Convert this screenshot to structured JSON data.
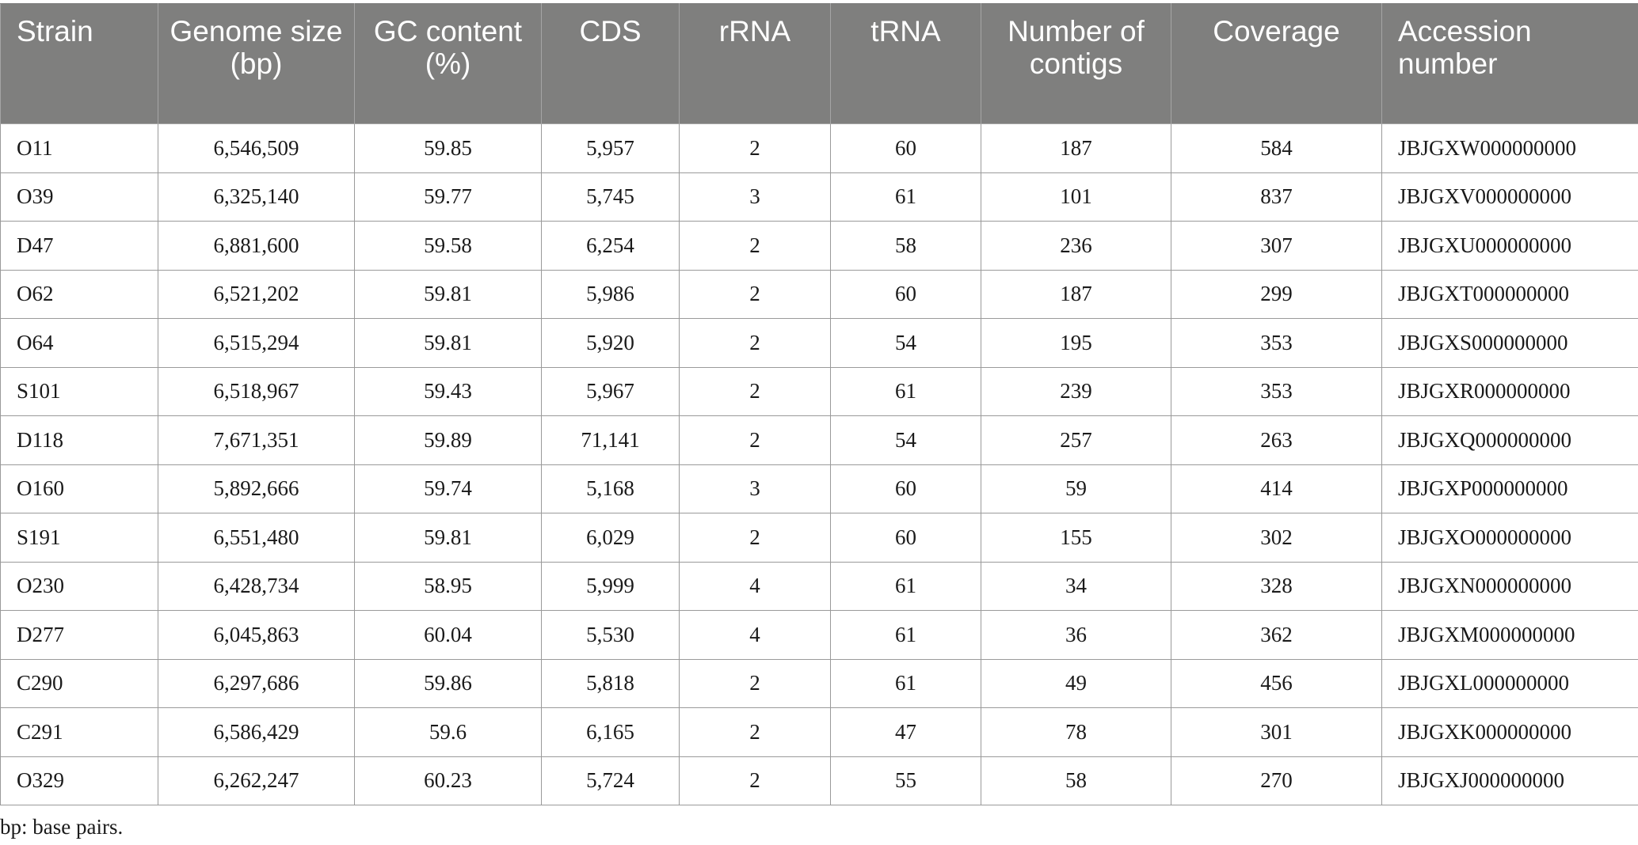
{
  "table": {
    "headers": [
      "Strain",
      "Genome size (bp)",
      "GC content (%)",
      "CDS",
      "rRNA",
      "tRNA",
      "Number of contigs",
      "Coverage",
      "Accession number"
    ],
    "rows": [
      [
        "O11",
        "6,546,509",
        "59.85",
        "5,957",
        "2",
        "60",
        "187",
        "584",
        "JBJGXW000000000"
      ],
      [
        "O39",
        "6,325,140",
        "59.77",
        "5,745",
        "3",
        "61",
        "101",
        "837",
        "JBJGXV000000000"
      ],
      [
        "D47",
        "6,881,600",
        "59.58",
        "6,254",
        "2",
        "58",
        "236",
        "307",
        "JBJGXU000000000"
      ],
      [
        "O62",
        "6,521,202",
        "59.81",
        "5,986",
        "2",
        "60",
        "187",
        "299",
        "JBJGXT000000000"
      ],
      [
        "O64",
        "6,515,294",
        "59.81",
        "5,920",
        "2",
        "54",
        "195",
        "353",
        "JBJGXS000000000"
      ],
      [
        "S101",
        "6,518,967",
        "59.43",
        "5,967",
        "2",
        "61",
        "239",
        "353",
        "JBJGXR000000000"
      ],
      [
        "D118",
        "7,671,351",
        "59.89",
        "71,141",
        "2",
        "54",
        "257",
        "263",
        "JBJGXQ000000000"
      ],
      [
        "O160",
        "5,892,666",
        "59.74",
        "5,168",
        "3",
        "60",
        "59",
        "414",
        "JBJGXP000000000"
      ],
      [
        "S191",
        "6,551,480",
        "59.81",
        "6,029",
        "2",
        "60",
        "155",
        "302",
        "JBJGXO000000000"
      ],
      [
        "O230",
        "6,428,734",
        "58.95",
        "5,999",
        "4",
        "61",
        "34",
        "328",
        "JBJGXN000000000"
      ],
      [
        "D277",
        "6,045,863",
        "60.04",
        "5,530",
        "4",
        "61",
        "36",
        "362",
        "JBJGXM000000000"
      ],
      [
        "C290",
        "6,297,686",
        "59.86",
        "5,818",
        "2",
        "61",
        "49",
        "456",
        "JBJGXL000000000"
      ],
      [
        "C291",
        "6,586,429",
        "59.6",
        "6,165",
        "2",
        "47",
        "78",
        "301",
        "JBJGXK000000000"
      ],
      [
        "O329",
        "6,262,247",
        "60.23",
        "5,724",
        "2",
        "55",
        "58",
        "270",
        "JBJGXJ000000000"
      ]
    ]
  },
  "footnote": "bp: base pairs."
}
